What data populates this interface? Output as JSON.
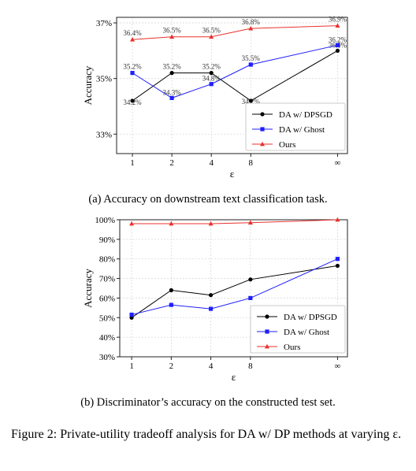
{
  "chart_data": [
    {
      "type": "line",
      "categories": [
        "1",
        "2",
        "4",
        "8",
        "∞"
      ],
      "ylabel": "Accuracy",
      "xlabel": "ε",
      "yticks": [
        "33%",
        "35%",
        "37%"
      ],
      "ylim": [
        32.3,
        37.2
      ],
      "grid": true,
      "legend_position": "bottom-right",
      "series": [
        {
          "name": "DA w/ DPSGD",
          "values": [
            34.2,
            35.2,
            35.2,
            34.2,
            36.0
          ],
          "labels": [
            "34.2%",
            "35.2%",
            "35.2%",
            "34.2%",
            "36.0%"
          ]
        },
        {
          "name": "DA w/ Ghost",
          "values": [
            35.2,
            34.3,
            34.8,
            35.5,
            36.2
          ],
          "labels": [
            "35.2%",
            "34.3%",
            "34.8%",
            "35.5%",
            "36.2%"
          ]
        },
        {
          "name": "Ours",
          "values": [
            36.4,
            36.5,
            36.5,
            36.8,
            36.9
          ],
          "labels": [
            "36.4%",
            "36.5%",
            "36.5%",
            "36.8%",
            "36.9%"
          ]
        }
      ],
      "caption": "(a) Accuracy on downstream text classification task."
    },
    {
      "type": "line",
      "categories": [
        "1",
        "2",
        "4",
        "8",
        "∞"
      ],
      "ylabel": "Accuracy",
      "xlabel": "ε",
      "yticks": [
        "30%",
        "40%",
        "50%",
        "60%",
        "70%",
        "80%",
        "90%",
        "100%"
      ],
      "ylim": [
        30,
        100
      ],
      "grid": true,
      "legend_position": "bottom-right",
      "series": [
        {
          "name": "DA w/ DPSGD",
          "values": [
            50,
            64,
            61.5,
            69.5,
            76.5
          ]
        },
        {
          "name": "DA w/ Ghost",
          "values": [
            51.5,
            56.5,
            54.5,
            60,
            80
          ]
        },
        {
          "name": "Ours",
          "values": [
            98,
            98,
            98,
            98.5,
            100
          ]
        }
      ],
      "caption": "(b) Discriminator’s accuracy on the constructed test set."
    }
  ],
  "series_colors": {
    "DA w/ DPSGD": "#000000",
    "DA w/ Ghost": "#1f1fff",
    "Ours": "#e8322e"
  },
  "figure_caption": "Figure 2: Private-utility tradeoff analysis for DA w/ DP methods at varying ε."
}
